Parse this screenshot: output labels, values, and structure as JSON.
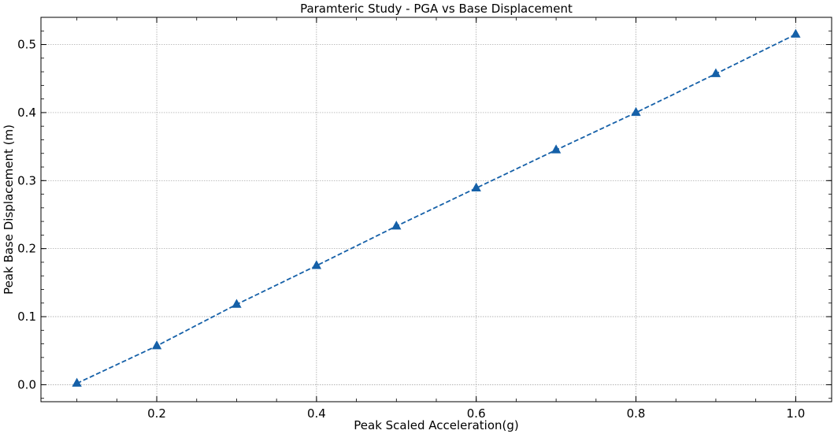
{
  "chart_data": {
    "type": "line",
    "title": "Paramteric Study - PGA vs Base Displacement",
    "xlabel": "Peak Scaled Acceleration(g)",
    "ylabel": "Peak Base Displacement (m)",
    "xlim": [
      0.055,
      1.045
    ],
    "ylim": [
      -0.025,
      0.54
    ],
    "xticks": [
      0.2,
      0.4,
      0.6,
      0.8,
      1.0
    ],
    "xtick_labels": [
      "0.2",
      "0.4",
      "0.6",
      "0.8",
      "1.0"
    ],
    "yticks": [
      0.0,
      0.1,
      0.2,
      0.3,
      0.4,
      0.5
    ],
    "ytick_labels": [
      "0.0",
      "0.1",
      "0.2",
      "0.3",
      "0.4",
      "0.5"
    ],
    "grid": true,
    "series": [
      {
        "x": [
          0.1,
          0.2,
          0.3,
          0.4,
          0.5,
          0.6,
          0.7,
          0.8,
          0.9,
          1.0
        ],
        "values": [
          0.002,
          0.057,
          0.118,
          0.175,
          0.233,
          0.289,
          0.345,
          0.4,
          0.457,
          0.515
        ],
        "color": "#1560a8",
        "line_style": "dashed",
        "marker": "triangle"
      }
    ]
  }
}
